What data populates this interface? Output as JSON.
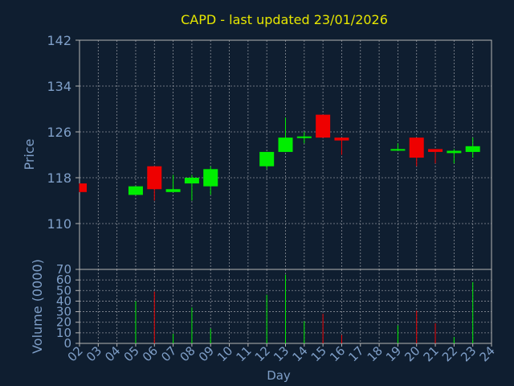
{
  "chart_data": {
    "type": "candlestick",
    "title": "CAPD - last updated 23/01/2026",
    "xlabel": "Day",
    "price_panel": {
      "ylabel": "Price",
      "ylim": [
        102,
        142
      ],
      "yticks": [
        "142",
        "134",
        "126",
        "118",
        "110"
      ],
      "ytick_values": [
        142,
        134,
        126,
        118,
        110
      ]
    },
    "volume_panel": {
      "ylabel": "Volume (0000)",
      "ylim": [
        0,
        70
      ],
      "yticks": [
        "70",
        "60",
        "50",
        "40",
        "30",
        "20",
        "10",
        "0"
      ],
      "ytick_values": [
        70,
        60,
        50,
        40,
        30,
        20,
        10,
        0
      ]
    },
    "xticks": [
      "02",
      "03",
      "04",
      "05",
      "06",
      "07",
      "08",
      "09",
      "10",
      "11",
      "12",
      "13",
      "14",
      "15",
      "16",
      "17",
      "18",
      "19",
      "20",
      "21",
      "22",
      "23",
      "24"
    ],
    "xlim": [
      2,
      24
    ],
    "candles": [
      {
        "day": 2,
        "open": 117.0,
        "high": 117.0,
        "low": 115.5,
        "close": 115.5,
        "volume": 0
      },
      {
        "day": 5,
        "open": 115.0,
        "high": 116.5,
        "low": 115.0,
        "close": 116.5,
        "volume": 40
      },
      {
        "day": 6,
        "open": 120.0,
        "high": 120.0,
        "low": 114.0,
        "close": 116.0,
        "volume": 49
      },
      {
        "day": 7,
        "open": 115.5,
        "high": 118.5,
        "low": 115.5,
        "close": 116.0,
        "volume": 9
      },
      {
        "day": 8,
        "open": 117.0,
        "high": 118.5,
        "low": 114.0,
        "close": 118.0,
        "volume": 34
      },
      {
        "day": 9,
        "open": 116.5,
        "high": 120.0,
        "low": 115.0,
        "close": 119.5,
        "volume": 14
      },
      {
        "day": 12,
        "open": 120.0,
        "high": 122.5,
        "low": 119.5,
        "close": 122.5,
        "volume": 46
      },
      {
        "day": 13,
        "open": 122.5,
        "high": 128.5,
        "low": 122.5,
        "close": 125.0,
        "volume": 65
      },
      {
        "day": 14,
        "open": 125.0,
        "high": 126.0,
        "low": 124.0,
        "close": 125.2,
        "volume": 21
      },
      {
        "day": 15,
        "open": 129.0,
        "high": 129.0,
        "low": 125.0,
        "close": 125.0,
        "volume": 28
      },
      {
        "day": 16,
        "open": 125.0,
        "high": 125.0,
        "low": 122.0,
        "close": 124.5,
        "volume": 8
      },
      {
        "day": 19,
        "open": 122.8,
        "high": 124.0,
        "low": 122.8,
        "close": 123.0,
        "volume": 17
      },
      {
        "day": 20,
        "open": 125.0,
        "high": 125.0,
        "low": 120.0,
        "close": 121.5,
        "volume": 31
      },
      {
        "day": 21,
        "open": 123.0,
        "high": 123.0,
        "low": 120.5,
        "close": 122.5,
        "volume": 19
      },
      {
        "day": 22,
        "open": 122.3,
        "high": 123.0,
        "low": 120.5,
        "close": 122.7,
        "volume": 6
      },
      {
        "day": 23,
        "open": 122.5,
        "high": 125.0,
        "low": 121.5,
        "close": 123.5,
        "volume": 58
      }
    ],
    "grid": true,
    "colors": {
      "background": "#0f1e30",
      "axis": "#b5b5b5",
      "grid": "#8a8f98",
      "title": "#e6e600",
      "label": "#7f9fc8",
      "up": "#00ee00",
      "down": "#ee0000"
    }
  }
}
